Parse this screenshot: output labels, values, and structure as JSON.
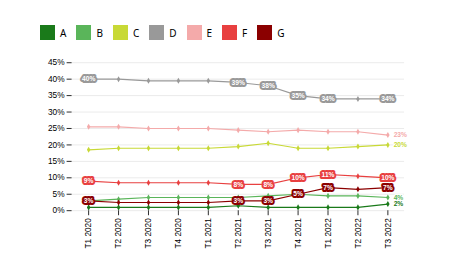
{
  "chart_data": {
    "type": "line",
    "categories": [
      "T1 2020",
      "T2 2020",
      "T3 2020",
      "T4 2020",
      "T1 2021",
      "T2 2021",
      "T3 2021",
      "T4 2021",
      "T1 2022",
      "T2 2022",
      "T3 2022"
    ],
    "series": [
      {
        "name": "A",
        "color": "#1a7a1a",
        "marker": "diamond",
        "values": [
          1,
          1,
          1,
          1,
          1,
          1.5,
          1,
          1,
          1,
          1,
          2
        ]
      },
      {
        "name": "B",
        "color": "#5ab55a",
        "marker": "diamond",
        "values": [
          3,
          3.5,
          4,
          4,
          4,
          4,
          4.5,
          5,
          4.5,
          4.5,
          4
        ]
      },
      {
        "name": "C",
        "color": "#c8d936",
        "marker": "diamond",
        "values": [
          18.5,
          19,
          19,
          19,
          19,
          19.5,
          20.5,
          19,
          19,
          19.5,
          20
        ]
      },
      {
        "name": "D",
        "color": "#999999",
        "marker": "diamond",
        "values": [
          40,
          40,
          39.5,
          39.5,
          39.5,
          39,
          38,
          35,
          34,
          34,
          34
        ],
        "value_labels": [
          "40%",
          null,
          null,
          null,
          null,
          "39%",
          "38%",
          "35%",
          "34%",
          null,
          "34%"
        ]
      },
      {
        "name": "E",
        "color": "#f4aaaa",
        "marker": "diamond",
        "values": [
          25.5,
          25.5,
          25,
          25,
          25,
          24.5,
          24,
          24.5,
          24,
          24,
          23
        ]
      },
      {
        "name": "F",
        "color": "#e84040",
        "marker": "diamond",
        "values": [
          9,
          8.5,
          8.5,
          8.5,
          8.5,
          8,
          8,
          10,
          11,
          10.5,
          10
        ],
        "value_labels": [
          "9%",
          null,
          null,
          null,
          null,
          "8%",
          "8%",
          "10%",
          "11%",
          null,
          "10%"
        ]
      },
      {
        "name": "G",
        "color": "#8b0000",
        "marker": "diamond",
        "values": [
          3,
          2.5,
          2.5,
          2.5,
          2.5,
          3,
          3,
          5,
          7,
          6.5,
          7
        ],
        "value_labels": [
          "3%",
          null,
          null,
          null,
          null,
          "3%",
          "3%",
          "5%",
          "7%",
          null,
          "7%"
        ]
      }
    ],
    "annotations": [
      {
        "series": "E",
        "text": "23%"
      },
      {
        "series": "C",
        "text": "20%"
      },
      {
        "series": "B",
        "text": "4%"
      },
      {
        "series": "A",
        "text": "2%"
      }
    ],
    "ylim": [
      0,
      45
    ],
    "yticks": [
      {
        "value": 0,
        "label": "0%"
      },
      {
        "value": 5,
        "label": "5%"
      },
      {
        "value": 10,
        "label": "10%"
      },
      {
        "value": 15,
        "label": "15%"
      },
      {
        "value": 20,
        "label": "20%"
      },
      {
        "value": 25,
        "label": "25%"
      },
      {
        "value": 30,
        "label": "30%"
      },
      {
        "value": 35,
        "label": "35%"
      },
      {
        "value": 40,
        "label": "40%"
      },
      {
        "value": 45,
        "label": "45%"
      }
    ],
    "grid": true,
    "legend": "top"
  }
}
